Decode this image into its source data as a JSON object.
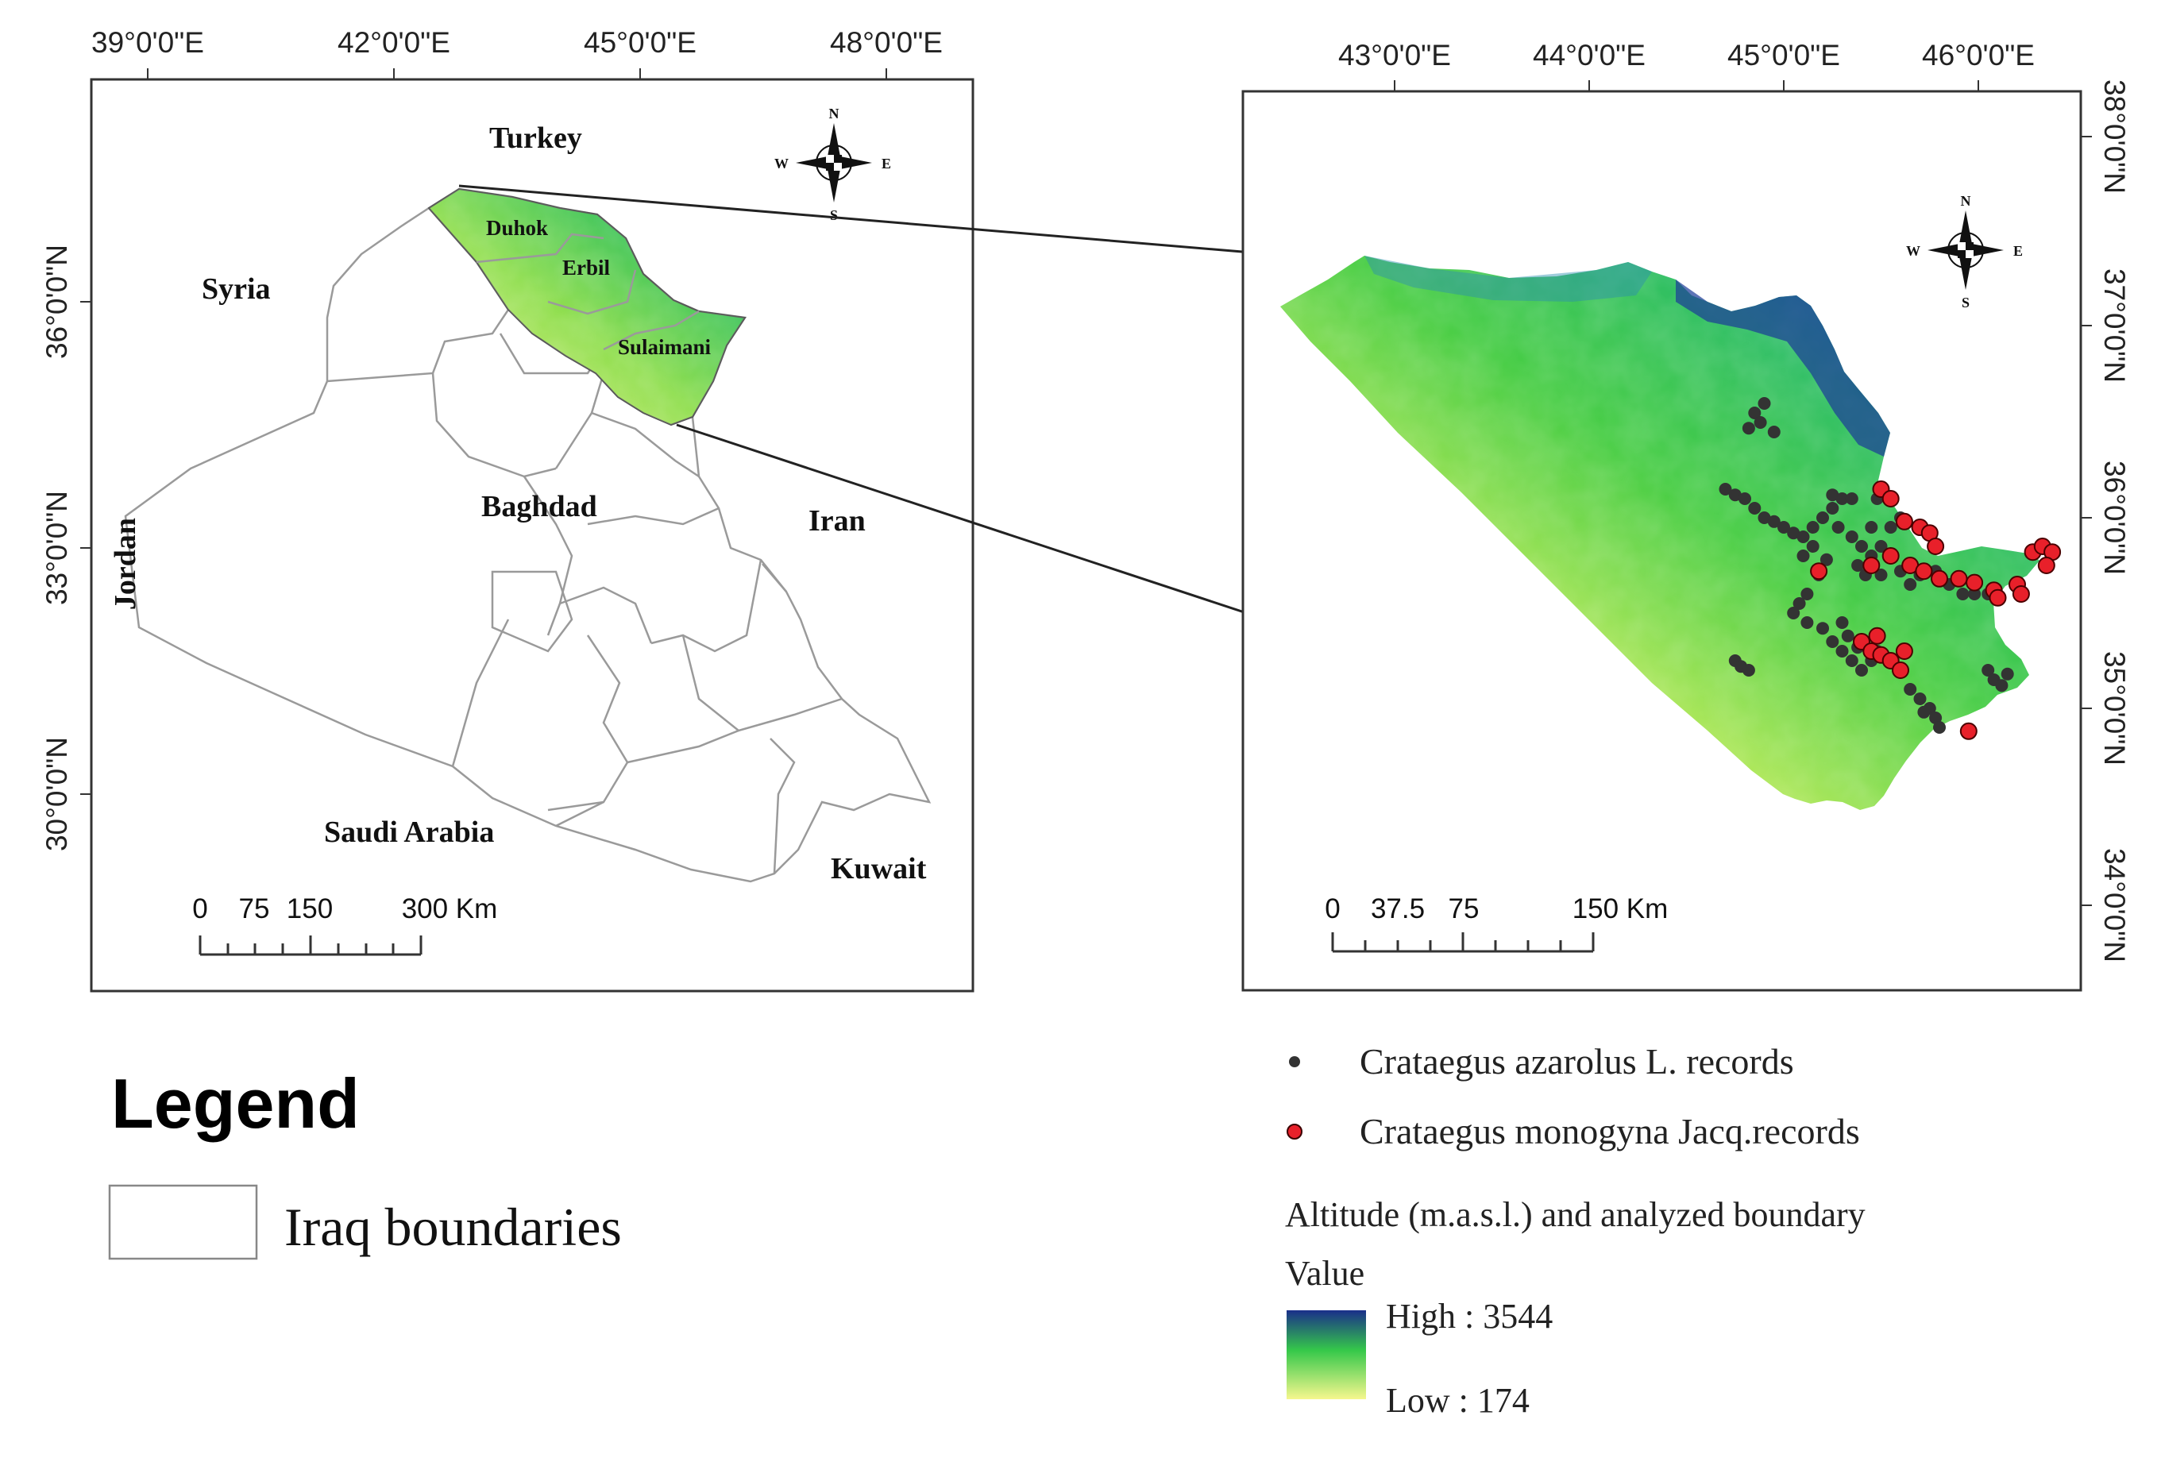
{
  "overview_map": {
    "lon_ticks": [
      "39°0'0\"E",
      "42°0'0\"E",
      "45°0'0\"E",
      "48°0'0\"E"
    ],
    "lat_ticks": [
      "36°0'0\"N",
      "33°0'0\"N",
      "30°0'0\"N"
    ],
    "country_labels": [
      "Turkey",
      "Syria",
      "Baghdad",
      "Iran",
      "Jordan",
      "Saudi Arabia",
      "Kuwait"
    ],
    "governorate_labels": [
      "Duhok",
      "Erbil",
      "Sulaimani"
    ],
    "scale_labels": [
      "0",
      "75",
      "150",
      "300 Km"
    ],
    "compass": {
      "n": "N",
      "s": "S",
      "e": "E",
      "w": "W"
    }
  },
  "detail_map": {
    "lon_ticks": [
      "43°0'0\"E",
      "44°0'0\"E",
      "45°0'0\"E",
      "46°0'0\"E"
    ],
    "lat_ticks": [
      "38°0'0\"N",
      "37°0'0\"N",
      "36°0'0\"N",
      "35°0'0\"N",
      "34°0'0\"N"
    ],
    "scale_labels": [
      "0",
      "37.5",
      "75",
      "150 Km"
    ],
    "compass": {
      "n": "N",
      "s": "S",
      "e": "E",
      "w": "W"
    },
    "azarolus_records": [
      [
        44.85,
        36.55
      ],
      [
        44.88,
        36.5
      ],
      [
        44.82,
        36.47
      ],
      [
        44.9,
        36.6
      ],
      [
        44.95,
        36.45
      ],
      [
        44.7,
        36.15
      ],
      [
        44.75,
        36.12
      ],
      [
        44.8,
        36.1
      ],
      [
        44.85,
        36.05
      ],
      [
        44.9,
        36.0
      ],
      [
        44.95,
        35.98
      ],
      [
        45.0,
        35.95
      ],
      [
        45.05,
        35.92
      ],
      [
        45.1,
        35.9
      ],
      [
        45.15,
        35.95
      ],
      [
        45.2,
        36.0
      ],
      [
        45.25,
        36.05
      ],
      [
        45.3,
        36.1
      ],
      [
        45.35,
        36.1
      ],
      [
        45.28,
        35.95
      ],
      [
        45.35,
        35.9
      ],
      [
        45.4,
        35.85
      ],
      [
        45.45,
        35.8
      ],
      [
        45.5,
        35.85
      ],
      [
        45.55,
        35.95
      ],
      [
        45.6,
        36.0
      ],
      [
        45.45,
        35.95
      ],
      [
        45.38,
        35.75
      ],
      [
        45.42,
        35.7
      ],
      [
        45.5,
        35.7
      ],
      [
        45.6,
        35.72
      ],
      [
        45.65,
        35.65
      ],
      [
        45.7,
        35.7
      ],
      [
        45.78,
        35.72
      ],
      [
        45.85,
        35.65
      ],
      [
        45.92,
        35.6
      ],
      [
        45.98,
        35.6
      ],
      [
        46.05,
        35.6
      ],
      [
        45.22,
        35.78
      ],
      [
        45.18,
        35.7
      ],
      [
        45.12,
        35.6
      ],
      [
        45.08,
        35.55
      ],
      [
        45.05,
        35.5
      ],
      [
        45.12,
        35.45
      ],
      [
        45.2,
        35.42
      ],
      [
        45.25,
        35.35
      ],
      [
        45.3,
        35.3
      ],
      [
        45.35,
        35.25
      ],
      [
        45.4,
        35.2
      ],
      [
        45.45,
        35.25
      ],
      [
        45.48,
        35.3
      ],
      [
        44.75,
        35.25
      ],
      [
        44.78,
        35.22
      ],
      [
        44.82,
        35.2
      ],
      [
        45.65,
        35.1
      ],
      [
        45.7,
        35.05
      ],
      [
        45.75,
        35.0
      ],
      [
        45.78,
        34.95
      ],
      [
        45.8,
        34.9
      ],
      [
        45.72,
        34.98
      ],
      [
        46.05,
        35.2
      ],
      [
        46.08,
        35.15
      ],
      [
        46.12,
        35.12
      ],
      [
        46.15,
        35.18
      ],
      [
        45.15,
        35.85
      ],
      [
        45.1,
        35.8
      ],
      [
        45.3,
        35.45
      ],
      [
        45.33,
        35.38
      ],
      [
        45.38,
        35.32
      ],
      [
        45.25,
        36.12
      ],
      [
        45.48,
        36.1
      ]
    ],
    "monogyna_records": [
      [
        45.5,
        36.15
      ],
      [
        45.55,
        36.1
      ],
      [
        45.62,
        35.98
      ],
      [
        45.7,
        35.95
      ],
      [
        45.75,
        35.92
      ],
      [
        45.78,
        35.85
      ],
      [
        45.55,
        35.8
      ],
      [
        45.65,
        35.75
      ],
      [
        45.72,
        35.72
      ],
      [
        45.8,
        35.68
      ],
      [
        45.9,
        35.68
      ],
      [
        45.98,
        35.66
      ],
      [
        46.08,
        35.62
      ],
      [
        46.1,
        35.58
      ],
      [
        46.2,
        35.65
      ],
      [
        46.28,
        35.82
      ],
      [
        46.33,
        35.85
      ],
      [
        46.38,
        35.82
      ],
      [
        46.35,
        35.75
      ],
      [
        46.22,
        35.6
      ],
      [
        45.45,
        35.75
      ],
      [
        45.18,
        35.72
      ],
      [
        45.4,
        35.35
      ],
      [
        45.45,
        35.3
      ],
      [
        45.5,
        35.28
      ],
      [
        45.55,
        35.25
      ],
      [
        45.6,
        35.2
      ],
      [
        45.48,
        35.38
      ],
      [
        45.62,
        35.3
      ],
      [
        45.95,
        34.88
      ]
    ]
  },
  "legend": {
    "title": "Legend",
    "iraq_boundaries": "Iraq boundaries",
    "azarolus_label": "Crataegus azarolus L. records",
    "monogyna_label": "Crataegus monogyna Jacq.records",
    "altitude_title": "Altitude (m.a.s.l.) and analyzed boundary",
    "value_label": "Value",
    "high_label": "High : 3544",
    "low_label": "Low : 174"
  },
  "colors": {
    "azarolus": "#333333",
    "monogyna": "#e8202a",
    "altitude_high": "#1a2f8a",
    "altitude_mid": "#35c84a",
    "altitude_low": "#f2f28a"
  }
}
